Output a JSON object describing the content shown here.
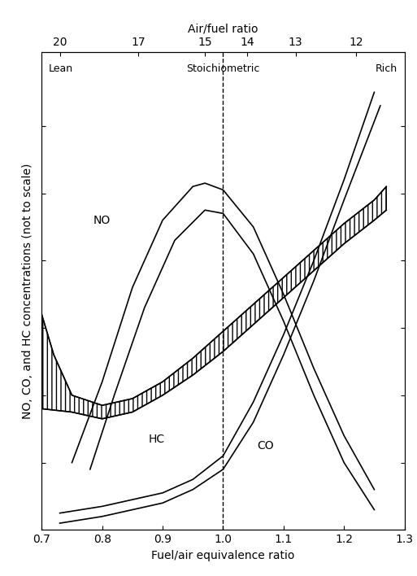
{
  "chart_data": {
    "type": "line",
    "xlabel": "Fuel/air equivalence ratio",
    "ylabel": "NO, CO, and HC concentrations (not to scale)",
    "x2label": "Air/fuel ratio",
    "xlim": [
      0.7,
      1.3
    ],
    "xticks": [
      0.7,
      0.8,
      0.9,
      1.0,
      1.1,
      1.2,
      1.3
    ],
    "ylim": [
      0,
      7.1
    ],
    "yticks": [
      1,
      2,
      3,
      4,
      5,
      6
    ],
    "x2lim": [
      0.7,
      1.3
    ],
    "x2ticks": [
      {
        "value": 0.73,
        "label": "20"
      },
      {
        "value": 0.86,
        "label": "17"
      },
      {
        "value": 0.97,
        "label": "15"
      },
      {
        "value": 1.04,
        "label": "14"
      },
      {
        "value": 1.12,
        "label": "13"
      },
      {
        "value": 1.22,
        "label": "12"
      }
    ],
    "tick_labels": "x",
    "regions": [
      "Lean",
      "Stoichiometric",
      "Rich"
    ],
    "stoichiometric_x": 1.0,
    "series": [
      {
        "name": "NO",
        "type": "line",
        "color": "#000000",
        "x": [
          0.75,
          0.8,
          0.85,
          0.9,
          0.95,
          0.97,
          1.0,
          1.05,
          1.1,
          1.15,
          1.2,
          1.25
        ],
        "values": [
          1.0,
          2.2,
          3.6,
          4.6,
          5.1,
          5.15,
          5.05,
          4.5,
          3.5,
          2.4,
          1.4,
          0.6
        ],
        "lower_x": [
          0.78,
          0.82,
          0.87,
          0.92,
          0.97,
          1.0,
          1.05,
          1.1,
          1.15,
          1.2,
          1.25
        ],
        "lower": [
          0.9,
          2.0,
          3.3,
          4.3,
          4.75,
          4.7,
          4.1,
          3.1,
          2.0,
          1.0,
          0.3
        ]
      },
      {
        "name": "HC",
        "type": "band",
        "color": "#000000",
        "x": [
          0.7,
          0.72,
          0.75,
          0.8,
          0.85,
          0.9,
          0.95,
          1.0,
          1.05,
          1.1,
          1.15,
          1.2,
          1.25,
          1.27
        ],
        "values": [
          3.2,
          2.6,
          2.0,
          1.85,
          1.95,
          2.2,
          2.55,
          2.95,
          3.35,
          3.75,
          4.15,
          4.55,
          4.9,
          5.1
        ],
        "lower_x": [
          0.7,
          0.72,
          0.75,
          0.8,
          0.85,
          0.9,
          0.95,
          1.0,
          1.05,
          1.1,
          1.15,
          1.2,
          1.25,
          1.27
        ],
        "lower": [
          1.8,
          1.78,
          1.75,
          1.65,
          1.75,
          2.0,
          2.3,
          2.65,
          3.05,
          3.45,
          3.85,
          4.25,
          4.6,
          4.75
        ]
      },
      {
        "name": "CO",
        "type": "line",
        "color": "#000000",
        "x": [
          0.73,
          0.8,
          0.9,
          0.95,
          1.0,
          1.05,
          1.1,
          1.15,
          1.2,
          1.25
        ],
        "values": [
          0.25,
          0.35,
          0.55,
          0.75,
          1.1,
          1.9,
          2.9,
          4.0,
          5.2,
          6.5
        ],
        "lower_x": [
          0.73,
          0.8,
          0.9,
          0.95,
          1.0,
          1.05,
          1.1,
          1.15,
          1.2,
          1.26
        ],
        "lower": [
          0.1,
          0.2,
          0.4,
          0.6,
          0.9,
          1.6,
          2.6,
          3.7,
          4.9,
          6.3
        ]
      }
    ]
  }
}
